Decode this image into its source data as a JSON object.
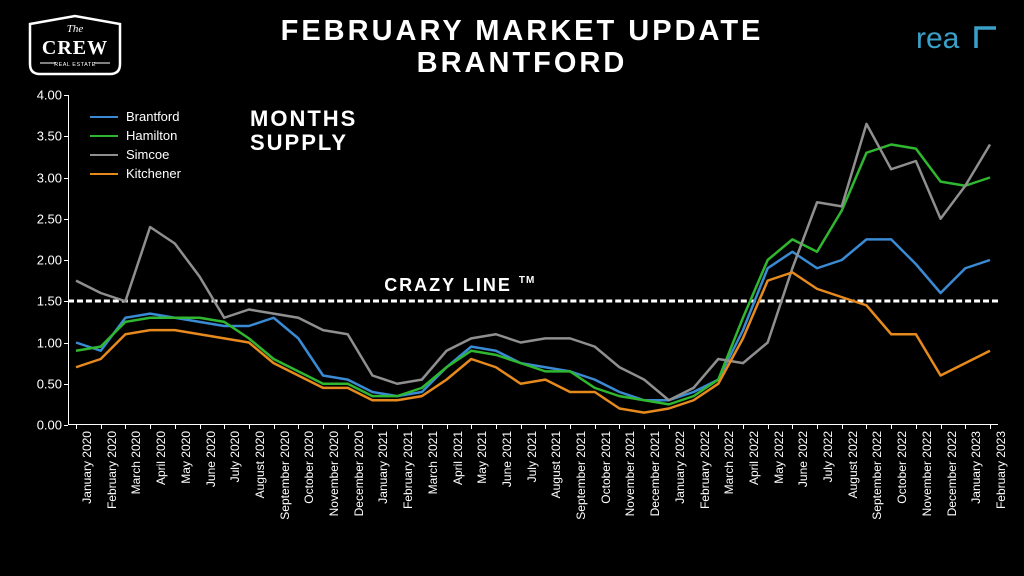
{
  "title_line1": "FEBRUARY MARKET UPDATE",
  "title_line2": "BRANTFORD",
  "logo_left": {
    "word1": "The",
    "word2": "CREW",
    "word3": "REAL ESTATE"
  },
  "logo_right_text": "real",
  "subtitle_line1": "MONTHS",
  "subtitle_line2": "SUPPLY",
  "crazy_line_label": "CRAZY LINE",
  "crazy_line_tm": "TM",
  "chart": {
    "type": "line",
    "background_color": "#000000",
    "text_color": "#ffffff",
    "grid_color": "#ffffff",
    "crazy_line_value": 1.5,
    "ylim": [
      0,
      4.0
    ],
    "ytick_step": 0.5,
    "yticks": [
      "0.00",
      "0.50",
      "1.00",
      "1.50",
      "2.00",
      "2.50",
      "3.00",
      "3.50",
      "4.00"
    ],
    "xlabels": [
      "January 2020",
      "February 2020",
      "March 2020",
      "April 2020",
      "May 2020",
      "June 2020",
      "July 2020",
      "August 2020",
      "September 2020",
      "October 2020",
      "November 2020",
      "December 2020",
      "January 2021",
      "February 2021",
      "March 2021",
      "April 2021",
      "May 2021",
      "June 2021",
      "July 2021",
      "August 2021",
      "September 2021",
      "October 2021",
      "November 2021",
      "December 2021",
      "January 2022",
      "February 2022",
      "March 2022",
      "April 2022",
      "May 2022",
      "June 2022",
      "July 2022",
      "August 2022",
      "September 2022",
      "October 2022",
      "November 2022",
      "December 2022",
      "January 2023",
      "February 2023"
    ],
    "line_width": 2.5,
    "series": [
      {
        "name": "Brantford",
        "color": "#3a8ad4",
        "values": [
          1.0,
          0.9,
          1.3,
          1.35,
          1.3,
          1.25,
          1.2,
          1.2,
          1.3,
          1.05,
          0.6,
          0.55,
          0.4,
          0.35,
          0.4,
          0.7,
          0.95,
          0.9,
          0.75,
          0.7,
          0.65,
          0.55,
          0.4,
          0.3,
          0.3,
          0.4,
          0.55,
          1.15,
          1.9,
          2.1,
          1.9,
          2.0,
          2.25,
          2.25,
          1.95,
          1.6,
          1.9,
          2.0
        ]
      },
      {
        "name": "Hamilton",
        "color": "#2fb82f",
        "values": [
          0.9,
          0.95,
          1.25,
          1.3,
          1.3,
          1.3,
          1.25,
          1.05,
          0.8,
          0.65,
          0.5,
          0.5,
          0.35,
          0.35,
          0.45,
          0.7,
          0.9,
          0.85,
          0.75,
          0.65,
          0.65,
          0.45,
          0.35,
          0.3,
          0.25,
          0.35,
          0.55,
          1.3,
          2.0,
          2.25,
          2.1,
          2.6,
          3.3,
          3.4,
          3.35,
          2.95,
          2.9,
          3.0
        ]
      },
      {
        "name": "Simcoe",
        "color": "#8f8f8f",
        "values": [
          1.75,
          1.6,
          1.5,
          2.4,
          2.2,
          1.8,
          1.3,
          1.4,
          1.35,
          1.3,
          1.15,
          1.1,
          0.6,
          0.5,
          0.55,
          0.9,
          1.05,
          1.1,
          1.0,
          1.05,
          1.05,
          0.95,
          0.7,
          0.55,
          0.3,
          0.45,
          0.8,
          0.75,
          1.0,
          1.9,
          2.7,
          2.65,
          3.65,
          3.1,
          3.2,
          2.5,
          2.9,
          3.4
        ]
      },
      {
        "name": "Kitchener",
        "color": "#e68a1e",
        "values": [
          0.7,
          0.8,
          1.1,
          1.15,
          1.15,
          1.1,
          1.05,
          1.0,
          0.75,
          0.6,
          0.45,
          0.45,
          0.3,
          0.3,
          0.35,
          0.55,
          0.8,
          0.7,
          0.5,
          0.55,
          0.4,
          0.4,
          0.2,
          0.15,
          0.2,
          0.3,
          0.5,
          1.05,
          1.75,
          1.85,
          1.65,
          1.55,
          1.45,
          1.1,
          1.1,
          0.6,
          0.75,
          0.9
        ]
      }
    ],
    "legend": {
      "position": "upper-left",
      "fontsize": 13
    },
    "title_fontsize": 29,
    "subtitle_fontsize": 22,
    "axis_label_fontsize": 13,
    "xlabel_fontsize": 12
  }
}
